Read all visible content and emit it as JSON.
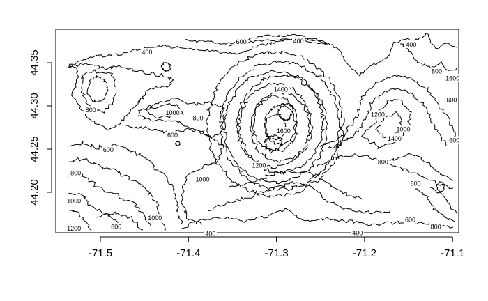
{
  "chart_data": {
    "type": "contour",
    "title": "",
    "xlabel": "",
    "ylabel": "",
    "xlim": [
      -71.55,
      -71.09
    ],
    "ylim": [
      44.145,
      44.39
    ],
    "x_ticks": [
      {
        "value": -71.5,
        "label": "-71.5"
      },
      {
        "value": -71.4,
        "label": "-71.4"
      },
      {
        "value": -71.3,
        "label": "-71.3"
      },
      {
        "value": -71.2,
        "label": "-71.2"
      },
      {
        "value": -71.1,
        "label": "-71.1"
      }
    ],
    "y_ticks": [
      {
        "value": 44.2,
        "label": "44.20"
      },
      {
        "value": 44.25,
        "label": "44.25"
      },
      {
        "value": 44.3,
        "label": "44.30"
      },
      {
        "value": 44.35,
        "label": "44.35"
      }
    ],
    "contour_levels": [
      400,
      600,
      800,
      1000,
      1200,
      1400,
      1600
    ],
    "contour_labels": [
      {
        "text": "400",
        "x": -71.447,
        "y": 44.362
      },
      {
        "text": "600",
        "x": -71.34,
        "y": 44.374
      },
      {
        "text": "400",
        "x": -71.275,
        "y": 44.375
      },
      {
        "text": "400",
        "x": -71.147,
        "y": 44.371
      },
      {
        "text": "800",
        "x": -71.118,
        "y": 44.34
      },
      {
        "text": "1600",
        "x": -71.1,
        "y": 44.332
      },
      {
        "text": "1400",
        "x": -71.295,
        "y": 44.319
      },
      {
        "text": "800",
        "x": -71.511,
        "y": 44.295
      },
      {
        "text": "1000",
        "x": -71.418,
        "y": 44.292
      },
      {
        "text": "800",
        "x": -71.389,
        "y": 44.286
      },
      {
        "text": "600",
        "x": -71.418,
        "y": 44.266
      },
      {
        "text": "1600",
        "x": -71.292,
        "y": 44.271
      },
      {
        "text": "1000",
        "x": -71.156,
        "y": 44.273
      },
      {
        "text": "1200",
        "x": -71.185,
        "y": 44.29
      },
      {
        "text": "1400",
        "x": -71.166,
        "y": 44.262
      },
      {
        "text": "600",
        "x": -71.101,
        "y": 44.307
      },
      {
        "text": "600",
        "x": -71.098,
        "y": 44.26
      },
      {
        "text": "600",
        "x": -71.491,
        "y": 44.249
      },
      {
        "text": "1200",
        "x": -71.32,
        "y": 44.231
      },
      {
        "text": "800",
        "x": -71.179,
        "y": 44.235
      },
      {
        "text": "1000",
        "x": -71.384,
        "y": 44.215
      },
      {
        "text": "800",
        "x": -71.142,
        "y": 44.21
      },
      {
        "text": "800",
        "x": -71.528,
        "y": 44.222
      },
      {
        "text": "1000",
        "x": -71.53,
        "y": 44.19
      },
      {
        "text": "1000",
        "x": -71.438,
        "y": 44.17
      },
      {
        "text": "800",
        "x": -71.482,
        "y": 44.16
      },
      {
        "text": "1200",
        "x": -71.53,
        "y": 44.158
      },
      {
        "text": "400",
        "x": -71.375,
        "y": 44.152
      },
      {
        "text": "400",
        "x": -71.208,
        "y": 44.153
      },
      {
        "text": "600",
        "x": -71.148,
        "y": 44.168
      },
      {
        "text": "800",
        "x": -71.119,
        "y": 44.16
      }
    ],
    "grid": false,
    "legend": "none"
  }
}
